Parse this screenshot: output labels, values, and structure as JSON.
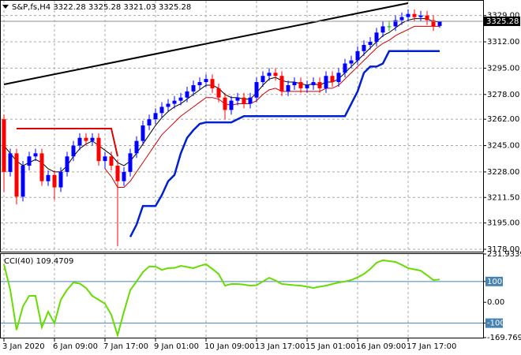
{
  "chart_data": [
    {
      "type": "candlestick",
      "title": "S&P,fs,H4  3322.28 3325.28 3321.03 3325.28",
      "categories": [
        "3 Jan 2020",
        null,
        null,
        null,
        null,
        null,
        null,
        null,
        "6 Jan 09:00",
        null,
        null,
        null,
        null,
        null,
        null,
        null,
        "7 Jan 17:00",
        null,
        null,
        null,
        null,
        null,
        null,
        null,
        "9 Jan 01:00",
        null,
        null,
        null,
        null,
        null,
        null,
        null,
        "10 Jan 09:00",
        null,
        null,
        null,
        null,
        null,
        null,
        null,
        "13 Jan 17:00",
        null,
        null,
        null,
        null,
        null,
        null,
        null,
        "15 Jan 01:00",
        null,
        null,
        null,
        null,
        null,
        null,
        null,
        "16 Jan 09:00",
        null,
        null,
        null,
        null,
        null,
        null,
        null,
        "17 Jan 17:00",
        null,
        null,
        null,
        null,
        null
      ],
      "open": [
        3262,
        3228,
        3240,
        3212,
        3232,
        3238,
        3240,
        3222,
        3226,
        3218,
        3228,
        3238,
        3245,
        3250,
        3248,
        3250,
        3235,
        3238,
        3232,
        3222,
        3228,
        3240,
        3248,
        3258,
        3262,
        3266,
        3270,
        3272,
        3274,
        3276,
        3280,
        3284,
        3286,
        3288,
        3282,
        3276,
        3268,
        3274,
        3276,
        3272,
        3276,
        3286,
        3290,
        3292,
        3290,
        3280,
        3284,
        3286,
        3282,
        3284,
        3286,
        3282,
        3290,
        3286,
        3292,
        3298,
        3300,
        3306,
        3310,
        3312,
        3318,
        3322,
        3322,
        3326,
        3328,
        3330,
        3328,
        3329,
        3326,
        3322.28
      ],
      "high": [
        3265,
        3243,
        3243,
        3235,
        3241,
        3243,
        3243,
        3229,
        3229,
        3231,
        3241,
        3248,
        3253,
        3253,
        3253,
        3253,
        3241,
        3241,
        3236,
        3231,
        3243,
        3251,
        3261,
        3265,
        3269,
        3273,
        3275,
        3277,
        3279,
        3283,
        3287,
        3289,
        3291,
        3291,
        3285,
        3279,
        3277,
        3279,
        3279,
        3279,
        3289,
        3293,
        3295,
        3295,
        3293,
        3287,
        3289,
        3289,
        3287,
        3289,
        3289,
        3293,
        3293,
        3295,
        3301,
        3303,
        3309,
        3313,
        3315,
        3321,
        3325,
        3325,
        3329,
        3331,
        3333,
        3333,
        3332,
        3332,
        3329,
        3325.28
      ],
      "low": [
        3215,
        3225,
        3207,
        3209,
        3229,
        3235,
        3219,
        3219,
        3210,
        3215,
        3225,
        3235,
        3242,
        3245,
        3245,
        3232,
        3230,
        3229,
        3180,
        3219,
        3225,
        3237,
        3245,
        3255,
        3259,
        3263,
        3267,
        3269,
        3271,
        3273,
        3277,
        3281,
        3283,
        3279,
        3273,
        3262,
        3265,
        3271,
        3269,
        3269,
        3273,
        3283,
        3287,
        3287,
        3277,
        3277,
        3281,
        3279,
        3279,
        3281,
        3279,
        3279,
        3283,
        3283,
        3289,
        3295,
        3297,
        3303,
        3307,
        3309,
        3315,
        3319,
        3319,
        3323,
        3325,
        3325,
        3325,
        3323,
        3319,
        3321.03
      ],
      "close": [
        3228,
        3240,
        3212,
        3232,
        3238,
        3240,
        3222,
        3226,
        3218,
        3228,
        3238,
        3245,
        3250,
        3248,
        3250,
        3235,
        3238,
        3232,
        3222,
        3228,
        3240,
        3248,
        3258,
        3262,
        3266,
        3270,
        3272,
        3274,
        3276,
        3280,
        3284,
        3286,
        3288,
        3282,
        3276,
        3268,
        3274,
        3276,
        3272,
        3276,
        3286,
        3290,
        3292,
        3290,
        3280,
        3284,
        3286,
        3282,
        3284,
        3286,
        3282,
        3290,
        3286,
        3292,
        3298,
        3300,
        3306,
        3310,
        3312,
        3318,
        3322,
        3322,
        3326,
        3328,
        3330,
        3328,
        3329,
        3326,
        3322,
        3325.28
      ],
      "up_color": "#0000ff",
      "down_color": "#ff0000",
      "flat_color": "#00b000",
      "series": [
        {
          "color": "#000000",
          "width": 1,
          "values": [
            3245,
            3240,
            3235,
            3232,
            3234,
            3236,
            3234,
            3230,
            3228,
            3228,
            3232,
            3238,
            3243,
            3246,
            3248,
            3245,
            3242,
            3239,
            3234,
            3232,
            3235,
            3240,
            3246,
            3252,
            3258,
            3263,
            3267,
            3270,
            3272,
            3275,
            3278,
            3281,
            3284,
            3284,
            3282,
            3278,
            3276,
            3276,
            3275,
            3275,
            3279,
            3284,
            3288,
            3289,
            3287,
            3286,
            3286,
            3285,
            3284,
            3285,
            3284,
            3286,
            3286,
            3288,
            3292,
            3296,
            3300,
            3304,
            3308,
            3312,
            3316,
            3318,
            3321,
            3324,
            3326,
            3327,
            3327,
            3327,
            3325,
            3325
          ]
        },
        {
          "color": "#d00000",
          "width": 1,
          "values": [
            null,
            null,
            null,
            null,
            null,
            null,
            null,
            null,
            null,
            null,
            null,
            null,
            null,
            null,
            null,
            null,
            3230,
            3225,
            3218,
            3218,
            3222,
            3228,
            3234,
            3240,
            3246,
            3252,
            3256,
            3260,
            3264,
            3267,
            3270,
            3273,
            3276,
            3276,
            3275,
            3272,
            3271,
            3272,
            3272,
            3272,
            3274,
            3278,
            3281,
            3282,
            3280,
            3280,
            3280,
            3280,
            3280,
            3280,
            3280,
            3282,
            3282,
            3284,
            3288,
            3292,
            3296,
            3300,
            3304,
            3308,
            3311,
            3313,
            3316,
            3318,
            3320,
            3322,
            3322,
            3322,
            3322,
            3322
          ]
        },
        {
          "color": "#e00000",
          "width": 2,
          "values": [
            null,
            null,
            3256,
            3256,
            3256,
            3256,
            3256,
            3256,
            3256,
            3256,
            3256,
            3256,
            3256,
            3256,
            3256,
            3256,
            3256,
            3256,
            3238,
            null,
            null,
            null,
            null,
            null,
            null,
            null,
            null,
            null,
            null,
            null,
            null,
            null,
            null,
            null,
            null,
            null,
            null,
            null,
            null,
            null,
            null,
            null,
            null,
            null,
            null,
            null,
            null,
            null,
            null,
            null,
            null,
            null,
            null,
            null,
            null,
            null,
            null,
            null,
            null,
            null,
            null,
            null,
            null,
            null,
            null,
            null,
            null,
            null,
            null,
            null
          ]
        },
        {
          "color": "#0020d0",
          "width": 2.5,
          "values": [
            null,
            null,
            null,
            null,
            null,
            null,
            null,
            null,
            null,
            null,
            null,
            null,
            null,
            null,
            null,
            null,
            null,
            null,
            null,
            null,
            3186,
            3194,
            3206,
            3206,
            3206,
            3213,
            3222,
            3226,
            3240,
            3250,
            3255,
            3259,
            3260,
            3260,
            3260,
            3260,
            3260,
            3262,
            3264,
            3264,
            3264,
            3264,
            3264,
            3264,
            3264,
            3264,
            3264,
            3264,
            3264,
            3264,
            3264,
            3264,
            3264,
            3264,
            3264,
            3272,
            3280,
            3292,
            3296,
            3296,
            3298,
            3306,
            3306,
            3306,
            3306,
            3306,
            3306,
            3306,
            3306,
            3306
          ]
        }
      ],
      "trendline": {
        "color": "#000000",
        "x": [
          0,
          64
        ],
        "values": [
          3284.5,
          3337
        ]
      },
      "ylim": [
        3177,
        3338
      ],
      "yticks": [
        {
          "value": 3329,
          "label": "3329.00"
        },
        {
          "value": 3312,
          "label": "3312.00"
        },
        {
          "value": 3295,
          "label": "3295.00"
        },
        {
          "value": 3278,
          "label": "3278.00"
        },
        {
          "value": 3262,
          "label": "3262.00"
        },
        {
          "value": 3245,
          "label": "3245.00"
        },
        {
          "value": 3228,
          "label": "3228.00"
        },
        {
          "value": 3211.5,
          "label": "3211.50"
        },
        {
          "value": 3195,
          "label": "3195.00"
        },
        {
          "value": 3178,
          "label": "3178.00"
        }
      ],
      "grid": true
    },
    {
      "type": "line",
      "title": "CCI(40) 109.4709",
      "color": "#66dd00",
      "values": [
        183,
        60,
        -133,
        -20,
        31,
        31,
        -120,
        -45,
        -101,
        12,
        60,
        95,
        90,
        69,
        30,
        12,
        -7,
        -60,
        -158,
        -45,
        58,
        100,
        145,
        172,
        172,
        156,
        164,
        165,
        175,
        170,
        164,
        175,
        183,
        160,
        136,
        80,
        88,
        88,
        85,
        80,
        82,
        100,
        118,
        105,
        88,
        85,
        82,
        80,
        75,
        69,
        75,
        80,
        88,
        95,
        100,
        107,
        120,
        136,
        160,
        190,
        202,
        198,
        194,
        180,
        164,
        158,
        152,
        130,
        107,
        109.4709
      ],
      "ylim": [
        -169.7697,
        231.9339
      ],
      "yticks": [
        231.9339,
        100,
        {
          "value": 0,
          "label": "0.00"
        },
        -100,
        -169.7697
      ],
      "levels": [
        100,
        -100
      ],
      "level_color": "#4682b4"
    }
  ]
}
